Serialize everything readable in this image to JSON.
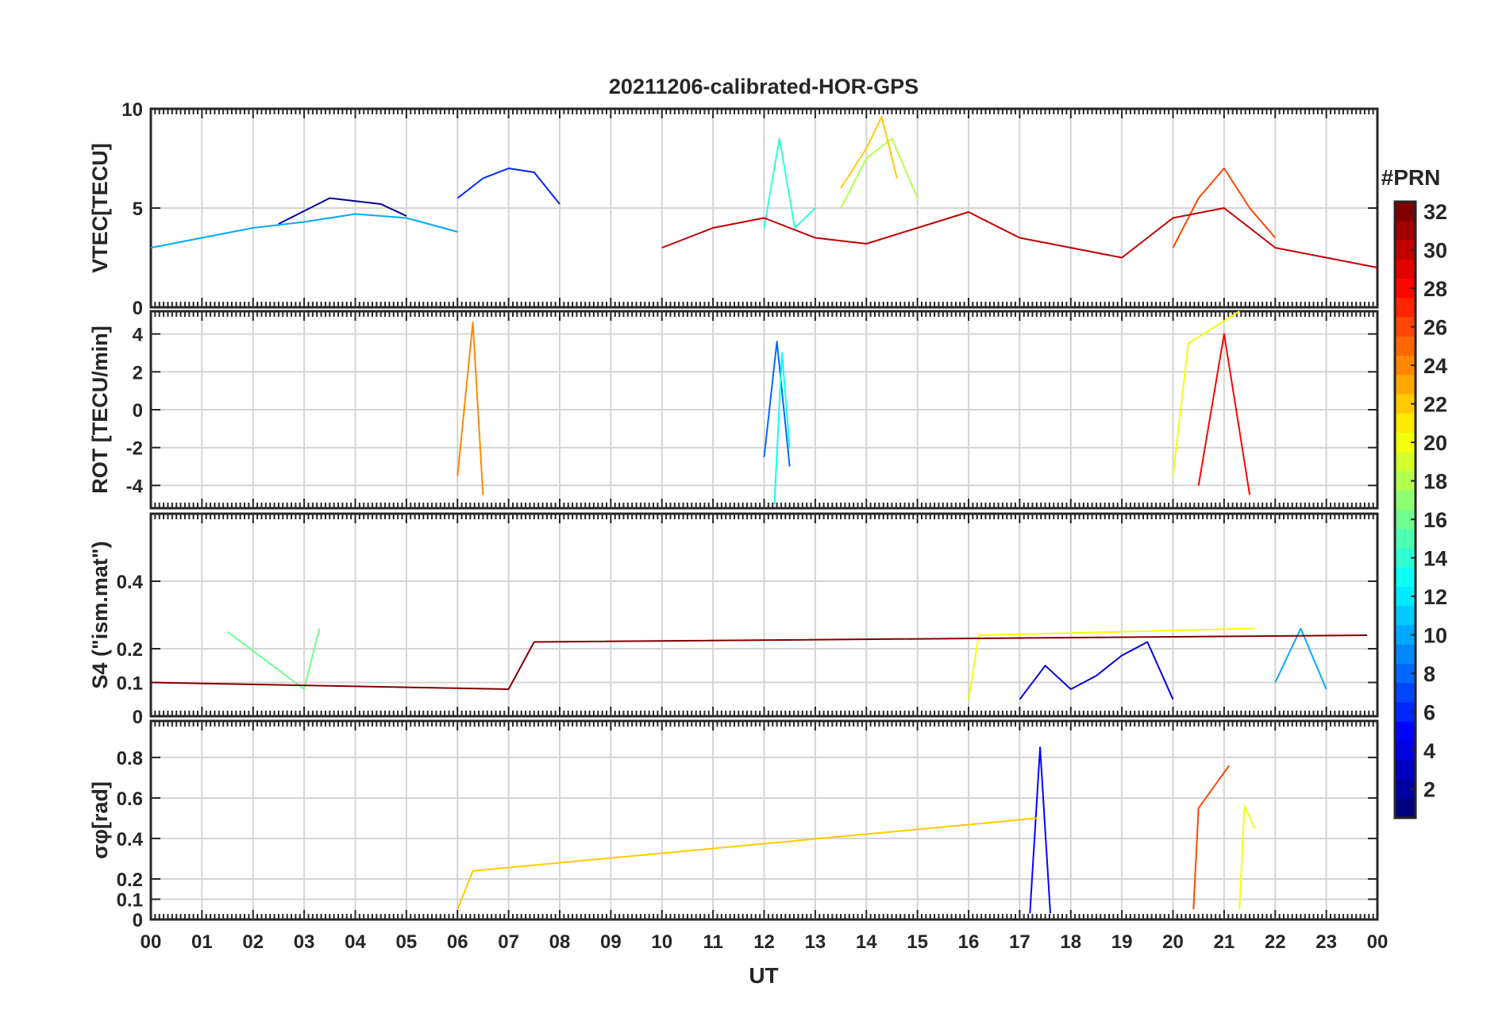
{
  "chart_data": {
    "type": "line",
    "title": "20211206-calibrated-HOR-GPS",
    "xlabel": "UT",
    "x_range": [
      0,
      24
    ],
    "x_tick_labels": [
      "00",
      "01",
      "02",
      "03",
      "04",
      "05",
      "06",
      "07",
      "08",
      "09",
      "10",
      "11",
      "12",
      "13",
      "14",
      "15",
      "16",
      "17",
      "18",
      "19",
      "20",
      "21",
      "22",
      "23",
      "00"
    ],
    "colorbar": {
      "label": "#PRN",
      "range": [
        1,
        32
      ],
      "tick_labels": [
        "2",
        "4",
        "6",
        "8",
        "10",
        "12",
        "14",
        "16",
        "18",
        "20",
        "22",
        "24",
        "26",
        "28",
        "30",
        "32"
      ],
      "colormap": "jet"
    },
    "panels": [
      {
        "ylabel": "VTEC[TECU]",
        "ylim": [
          0,
          10
        ],
        "y_ticks": [
          0,
          5,
          10
        ],
        "y_tick_labels": [
          "0",
          "5",
          "10"
        ],
        "series": [
          {
            "prn": 2,
            "name": "PRN 2",
            "x": [
              2.5,
              3.5,
              4.5,
              5.0
            ],
            "y": [
              4.2,
              5.5,
              5.2,
              4.6
            ]
          },
          {
            "prn": 6,
            "name": "PRN 6",
            "x": [
              6.0,
              6.5,
              7.0,
              7.5,
              8.0
            ],
            "y": [
              5.5,
              6.5,
              7.0,
              6.8,
              5.2
            ]
          },
          {
            "prn": 10,
            "name": "PRN 10",
            "x": [
              0.0,
              1.0,
              2.0,
              3.0,
              4.0,
              5.0,
              6.0
            ],
            "y": [
              3.0,
              3.5,
              4.0,
              4.3,
              4.7,
              4.5,
              3.8
            ]
          },
          {
            "prn": 14,
            "name": "PRN 14",
            "x": [
              12.0,
              12.3,
              12.6,
              13.0
            ],
            "y": [
              4.0,
              8.5,
              4.0,
              5.0
            ]
          },
          {
            "prn": 18,
            "name": "PRN 18",
            "x": [
              13.5,
              14.0,
              14.5,
              15.0
            ],
            "y": [
              5.0,
              7.5,
              8.5,
              5.5
            ]
          },
          {
            "prn": 22,
            "name": "PRN 22",
            "x": [
              13.5,
              14.0,
              14.3,
              14.6
            ],
            "y": [
              6.0,
              8.0,
              9.6,
              6.5
            ]
          },
          {
            "prn": 26,
            "name": "PRN 26",
            "x": [
              20.0,
              20.5,
              21.0,
              21.5,
              22.0
            ],
            "y": [
              3.0,
              5.5,
              7.0,
              5.0,
              3.5
            ]
          },
          {
            "prn": 30,
            "name": "PRN 30",
            "x": [
              10.0,
              11.0,
              12.0,
              13.0,
              14.0,
              15.0,
              16.0,
              17.0,
              18.0,
              19.0,
              20.0,
              21.0,
              22.0,
              23.0,
              24.0
            ],
            "y": [
              3.0,
              4.0,
              4.5,
              3.5,
              3.2,
              4.0,
              4.8,
              3.5,
              3.0,
              2.5,
              4.5,
              5.0,
              3.0,
              2.5,
              2.0
            ]
          }
        ]
      },
      {
        "ylabel": "ROT [TECU/min]",
        "ylim": [
          -5.2,
          5.2
        ],
        "y_ticks": [
          -4,
          -2,
          0,
          2,
          4
        ],
        "y_tick_labels": [
          "-4",
          "-2",
          "0",
          "2",
          "4"
        ],
        "series": [
          {
            "prn": 8,
            "name": "PRN 8",
            "x": [
              12.0,
              12.25,
              12.5
            ],
            "y": [
              -2.5,
              3.6,
              -3.0
            ]
          },
          {
            "prn": 13,
            "name": "PRN 13",
            "x": [
              12.2,
              12.35,
              12.5
            ],
            "y": [
              -5.0,
              3.0,
              -2.0
            ]
          },
          {
            "prn": 20,
            "name": "PRN 20",
            "x": [
              20.0,
              20.3,
              21.3
            ],
            "y": [
              -3.5,
              3.5,
              5.2
            ]
          },
          {
            "prn": 24,
            "name": "PRN 24",
            "x": [
              6.0,
              6.3,
              6.5
            ],
            "y": [
              -3.5,
              4.6,
              -4.5
            ]
          },
          {
            "prn": 28,
            "name": "PRN 28",
            "x": [
              20.5,
              21.0,
              21.5
            ],
            "y": [
              -4.0,
              4.0,
              -4.5
            ]
          }
        ]
      },
      {
        "ylabel": "S4 (\"ism.mat\")",
        "ylim": [
          0,
          0.6
        ],
        "y_ticks": [
          0,
          0.1,
          0.2,
          0.4
        ],
        "y_tick_labels": [
          "0",
          "0.1",
          "0.2",
          "0.4"
        ],
        "series": [
          {
            "prn": 4,
            "name": "PRN 4",
            "x": [
              17.0,
              17.5,
              18.0,
              18.5,
              19.0,
              19.5,
              20.0
            ],
            "y": [
              0.05,
              0.15,
              0.08,
              0.12,
              0.18,
              0.22,
              0.05
            ]
          },
          {
            "prn": 10,
            "name": "PRN 10",
            "x": [
              22.0,
              22.5,
              23.0
            ],
            "y": [
              0.1,
              0.26,
              0.08
            ]
          },
          {
            "prn": 16,
            "name": "PRN 16",
            "x": [
              1.5,
              3.0,
              3.3
            ],
            "y": [
              0.25,
              0.08,
              0.26
            ]
          },
          {
            "prn": 20,
            "name": "PRN 20",
            "x": [
              16.0,
              16.2,
              21.6
            ],
            "y": [
              0.05,
              0.24,
              0.26
            ]
          },
          {
            "prn": 32,
            "name": "PRN 32",
            "x": [
              0.0,
              7.0,
              7.5,
              23.8
            ],
            "y": [
              0.1,
              0.08,
              0.22,
              0.24
            ]
          }
        ]
      },
      {
        "ylabel": "σφ[rad]",
        "ylim": [
          0,
          0.98
        ],
        "y_ticks": [
          0,
          0.1,
          0.2,
          0.4,
          0.6,
          0.8
        ],
        "y_tick_labels": [
          "0",
          "0.1",
          "0.2",
          "0.4",
          "0.6",
          "0.8"
        ],
        "series": [
          {
            "prn": 5,
            "name": "PRN 5",
            "x": [
              17.2,
              17.4,
              17.6
            ],
            "y": [
              0.03,
              0.85,
              0.03
            ]
          },
          {
            "prn": 20,
            "name": "PRN 20",
            "x": [
              21.3,
              21.4,
              21.6
            ],
            "y": [
              0.05,
              0.56,
              0.45
            ]
          },
          {
            "prn": 22,
            "name": "PRN 22",
            "x": [
              6.0,
              6.3,
              17.35
            ],
            "y": [
              0.05,
              0.24,
              0.5
            ]
          },
          {
            "prn": 26,
            "name": "PRN 26",
            "x": [
              20.4,
              20.5,
              21.1
            ],
            "y": [
              0.05,
              0.55,
              0.76
            ]
          }
        ]
      }
    ]
  }
}
